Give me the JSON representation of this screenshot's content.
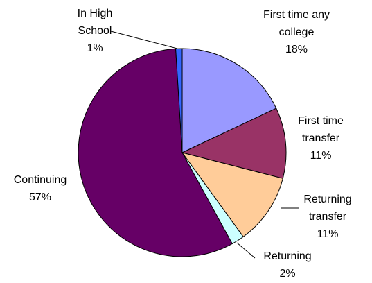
{
  "chart_data": {
    "type": "pie",
    "categories": [
      "First time any college",
      "First time transfer",
      "Returning transfer",
      "Returning",
      "Continuing",
      "In High School"
    ],
    "values": [
      18,
      11,
      11,
      2,
      57,
      1
    ],
    "value_labels": [
      "18%",
      "11%",
      "11%",
      "2%",
      "57%",
      "1%"
    ],
    "colors": [
      "#9999ff",
      "#993366",
      "#ffcc99",
      "#ccffff",
      "#660066",
      "#3366ff"
    ]
  }
}
